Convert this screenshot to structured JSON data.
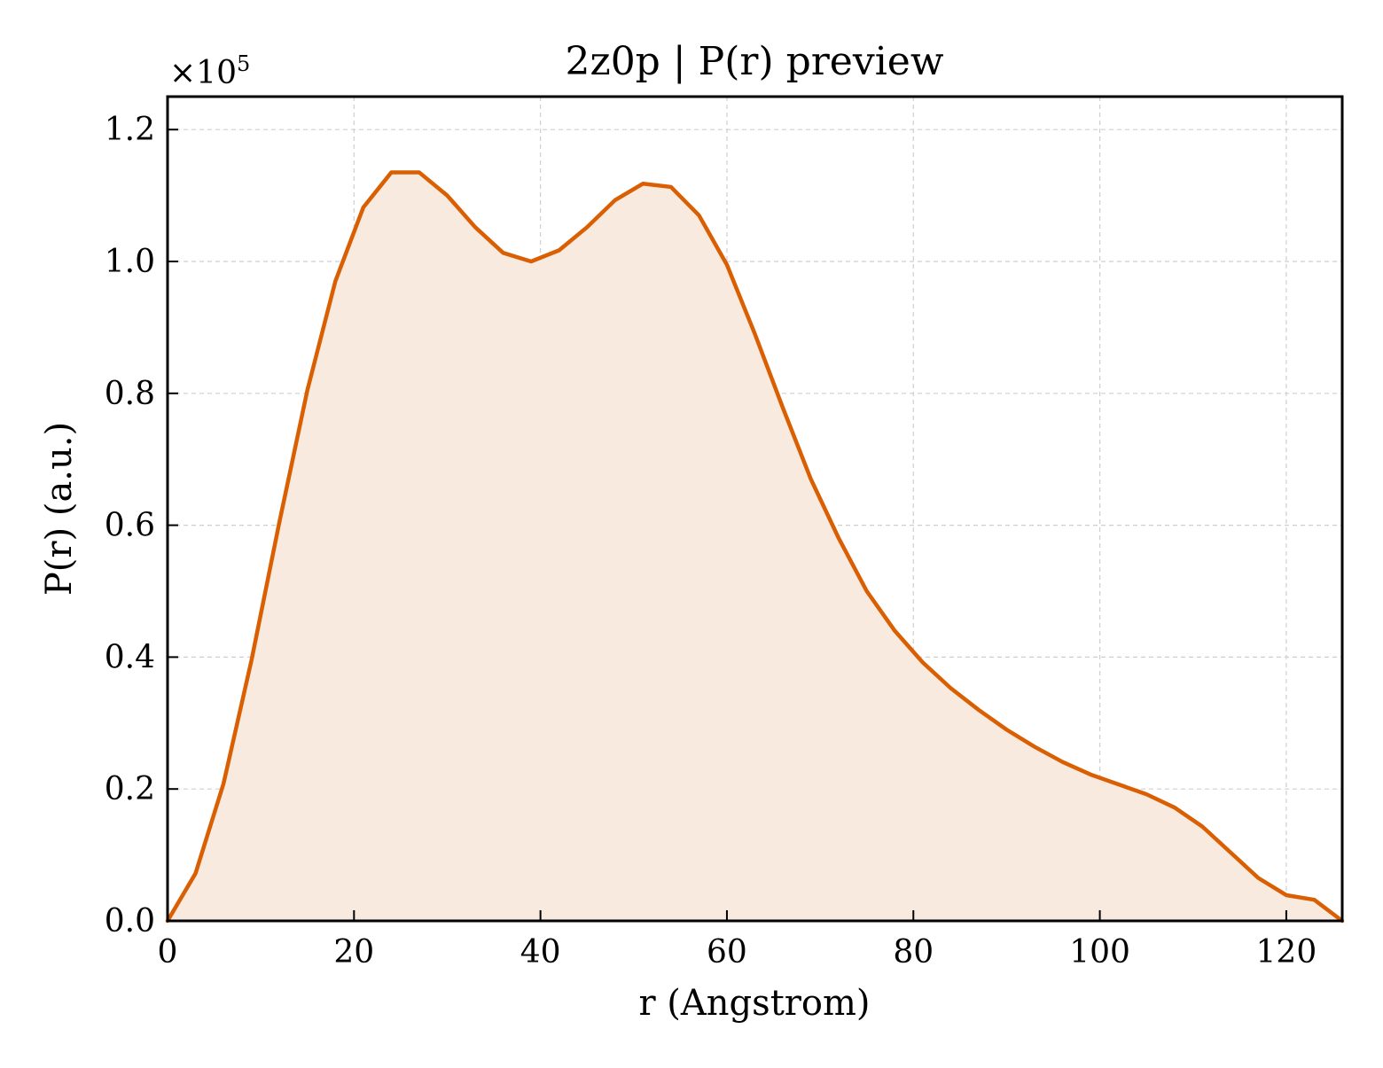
{
  "chart_data": {
    "type": "area",
    "title": "2z0p | P(r) preview",
    "xlabel": "r (Angstrom)",
    "ylabel": "P(r) (a.u.)",
    "y_scale_label": "×10",
    "y_scale_exponent": "5",
    "xlim": [
      0,
      126
    ],
    "ylim": [
      0,
      1.25
    ],
    "xticks": [
      0,
      20,
      40,
      60,
      80,
      100,
      120
    ],
    "xtick_labels": [
      "0",
      "20",
      "40",
      "60",
      "80",
      "100",
      "120"
    ],
    "yticks": [
      0.0,
      0.2,
      0.4,
      0.6,
      0.8,
      1.0,
      1.2
    ],
    "ytick_labels": [
      "0.0",
      "0.2",
      "0.4",
      "0.6",
      "0.8",
      "1.0",
      "1.2"
    ],
    "grid": true,
    "colors": {
      "line": "#d95f02",
      "fill": "#f9eadf"
    },
    "series": [
      {
        "x": [
          0,
          3,
          6,
          9,
          12,
          15,
          18,
          21,
          24,
          27,
          30,
          33,
          36,
          39,
          42,
          45,
          48,
          51,
          54,
          57,
          60,
          63,
          66,
          69,
          72,
          75,
          78,
          81,
          84,
          87,
          90,
          93,
          96,
          99,
          102,
          105,
          108,
          111,
          114,
          117,
          120,
          123,
          126
        ],
        "y": [
          0.0,
          0.072,
          0.208,
          0.395,
          0.605,
          0.805,
          0.97,
          1.082,
          1.135,
          1.135,
          1.1,
          1.052,
          1.013,
          1.0,
          1.017,
          1.052,
          1.093,
          1.118,
          1.113,
          1.07,
          0.995,
          0.89,
          0.778,
          0.67,
          0.58,
          0.5,
          0.44,
          0.392,
          0.353,
          0.32,
          0.29,
          0.264,
          0.241,
          0.222,
          0.207,
          0.192,
          0.172,
          0.143,
          0.104,
          0.065,
          0.039,
          0.032,
          0.0
        ]
      }
    ]
  }
}
